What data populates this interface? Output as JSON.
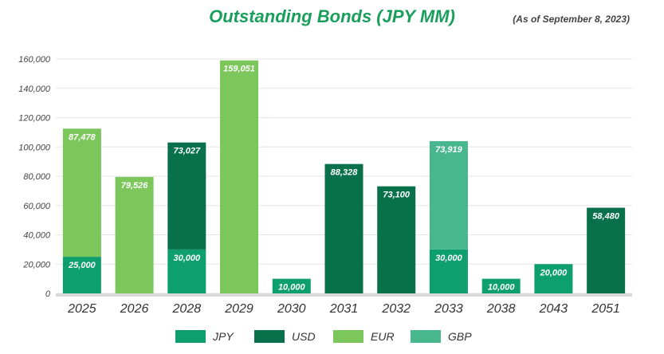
{
  "title": "Outstanding Bonds (JPY MM)",
  "note": "(As of September 8, 2023)",
  "chart_data": {
    "type": "bar",
    "stacked": true,
    "title": "Outstanding Bonds (JPY MM)",
    "xlabel": "",
    "ylabel": "",
    "ylim": [
      0,
      160000
    ],
    "yticks": [
      0,
      20000,
      40000,
      60000,
      80000,
      100000,
      120000,
      140000,
      160000
    ],
    "ytick_labels": [
      "0",
      "20,000",
      "40,000",
      "60,000",
      "80,000",
      "100,000",
      "120,000",
      "140,000",
      "160,000"
    ],
    "grid": true,
    "legend_position": "bottom",
    "categories": [
      "2025",
      "2026",
      "2028",
      "2029",
      "2030",
      "2031",
      "2032",
      "2033",
      "2038",
      "2043",
      "2051"
    ],
    "series": [
      {
        "name": "JPY",
        "color": "#0e9f6e",
        "values": [
          25000,
          0,
          30000,
          0,
          10000,
          0,
          0,
          30000,
          10000,
          20000,
          0
        ]
      },
      {
        "name": "USD",
        "color": "#08704a",
        "values": [
          0,
          0,
          73027,
          0,
          0,
          88328,
          73100,
          0,
          0,
          0,
          58480
        ]
      },
      {
        "name": "EUR",
        "color": "#7cc75b",
        "values": [
          87478,
          79526,
          0,
          159051,
          0,
          0,
          0,
          0,
          0,
          0,
          0
        ]
      },
      {
        "name": "GBP",
        "color": "#48b78e",
        "values": [
          0,
          0,
          0,
          0,
          0,
          0,
          0,
          73919,
          0,
          0,
          0
        ]
      }
    ]
  }
}
